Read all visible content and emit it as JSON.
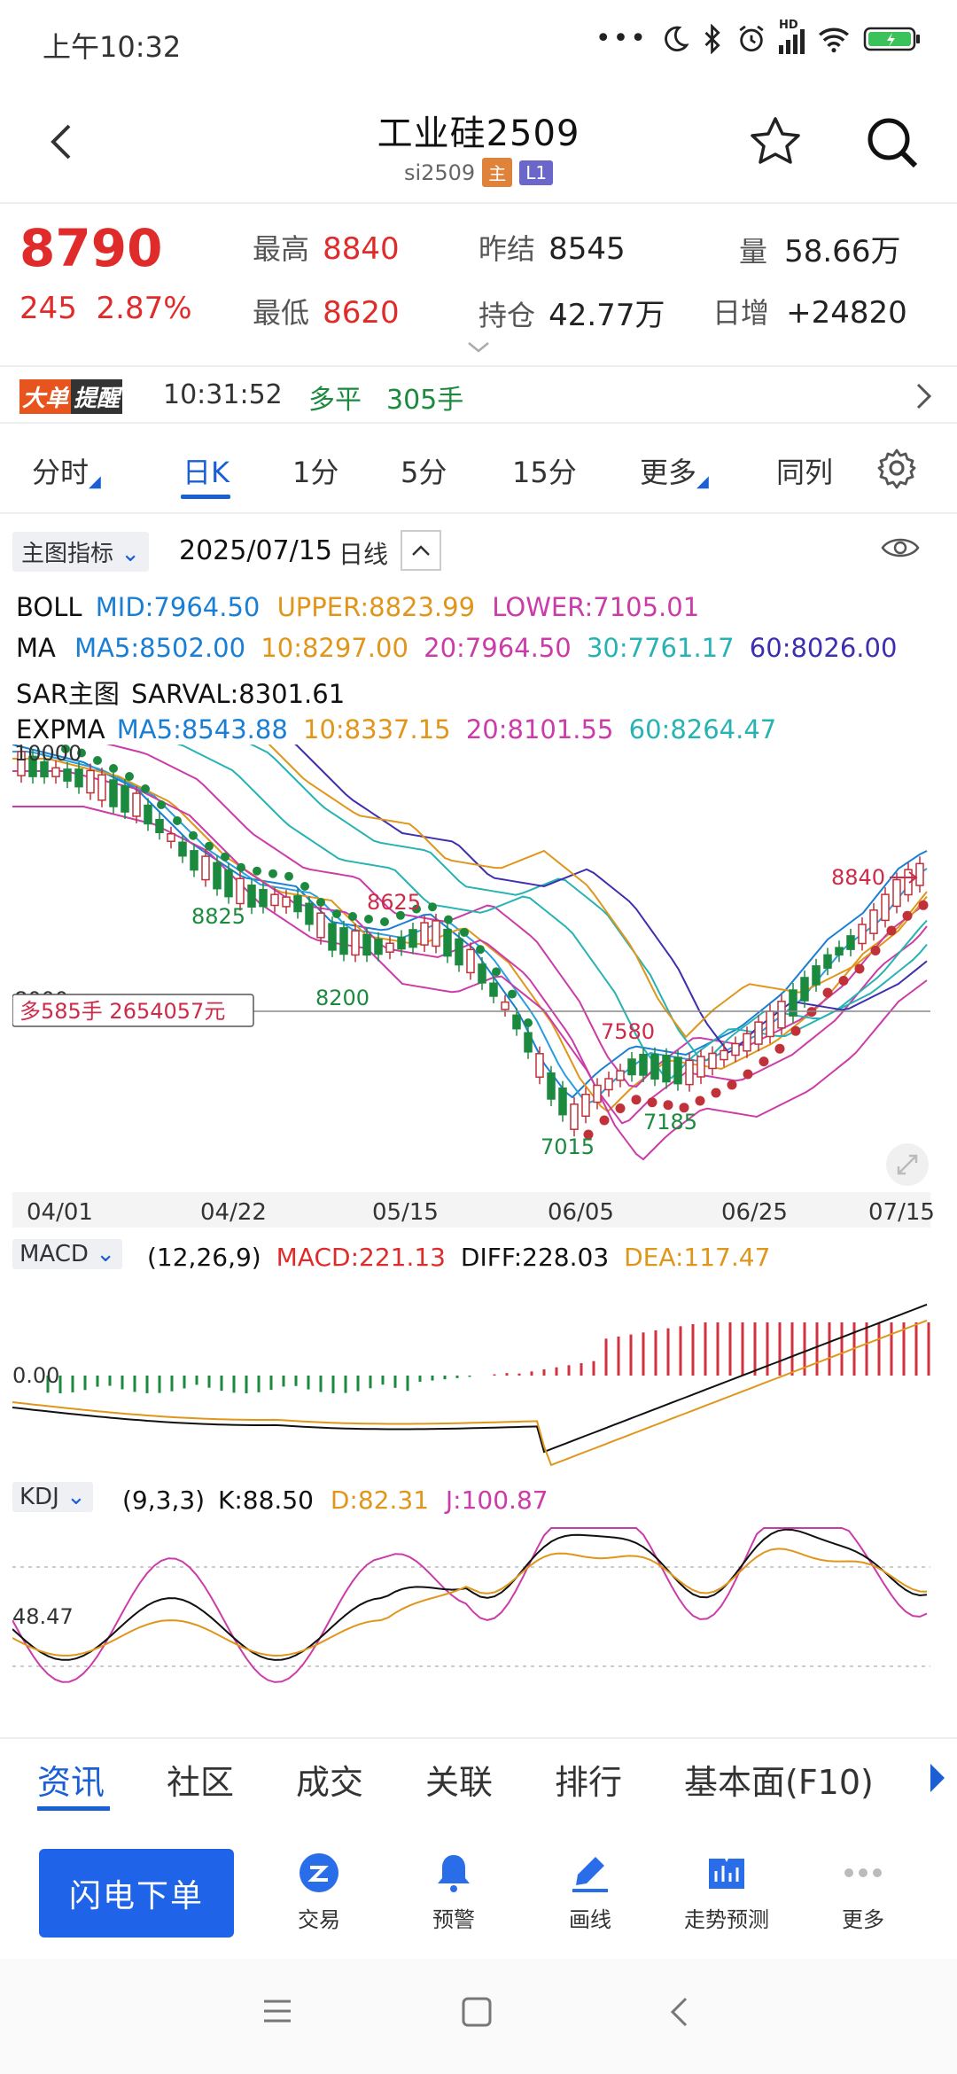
{
  "status": {
    "time": "上午10:32",
    "icons": [
      "dots-icon",
      "moon-icon",
      "bluetooth-icon",
      "alarm-icon",
      "signal-icon",
      "wifi-icon",
      "battery-icon"
    ],
    "hd": "HD"
  },
  "header": {
    "title": "工业硅2509",
    "code": "si2509",
    "badge_main": "主",
    "badge_l1": "L1"
  },
  "quote": {
    "price": "8790",
    "change": "245",
    "change_pct": "2.87%",
    "high_label": "最高",
    "high": "8840",
    "low_label": "最低",
    "low": "8620",
    "prev_settle_label": "昨结",
    "prev_settle": "8545",
    "oi_label": "持仓",
    "oi": "42.77万",
    "vol_label": "量",
    "vol": "58.66万",
    "daily_inc_label": "日增",
    "daily_inc": "+24820"
  },
  "alert": {
    "logo1": "大单",
    "logo2": "提醒",
    "time": "10:31:52",
    "type": "多平",
    "size": "305手"
  },
  "tabs": {
    "t1": "分时",
    "t2": "日K",
    "t3": "1分",
    "t4": "5分",
    "t5": "15分",
    "t6": "更多",
    "t7": "同列"
  },
  "chart_bar": {
    "indicator": "主图指标",
    "date": "2025/07/15",
    "period": "日线"
  },
  "boll": {
    "name": "BOLL",
    "mid": "MID:7964.50",
    "upper": "UPPER:8823.99",
    "lower": "LOWER:7105.01"
  },
  "ma": {
    "name": "MA",
    "ma5": "MA5:8502.00",
    "ma10": "10:8297.00",
    "ma20": "20:7964.50",
    "ma30": "30:7761.17",
    "ma60": "60:8026.00"
  },
  "sar": {
    "name": "SAR主图",
    "val": "SARVAL:8301.61"
  },
  "expma": {
    "name": "EXPMA",
    "ma5": "MA5:8543.88",
    "ma10": "10:8337.15",
    "ma20": "20:8101.55",
    "ma60": "60:8264.47"
  },
  "chart_labels": {
    "y_top": "10000",
    "y_mid": "8000",
    "p8825": "8825",
    "p8625": "8625",
    "p8200": "8200",
    "p7580": "7580",
    "p7015": "7015",
    "p7185": "7185",
    "p8840": "8840",
    "position_note": "多585手  2654057元"
  },
  "dates": [
    "04/01",
    "04/22",
    "05/15",
    "06/05",
    "06/25",
    "07/15"
  ],
  "macd": {
    "name": "MACD",
    "params": "(12,26,9)",
    "macd": "MACD:221.13",
    "diff": "DIFF:228.03",
    "dea": "DEA:117.47",
    "zero": "0.00"
  },
  "kdj": {
    "name": "KDJ",
    "params": "(9,3,3)",
    "k": "K:88.50",
    "d": "D:82.31",
    "j": "J:100.87",
    "level": "48.47"
  },
  "bottom_tabs": {
    "b1": "资讯",
    "b2": "社区",
    "b3": "成交",
    "b4": "关联",
    "b5": "排行",
    "b6": "基本面(F10)"
  },
  "toolbar": {
    "fast": "闪电下单",
    "trade": "交易",
    "warn": "预警",
    "draw": "画线",
    "predict": "走势预测",
    "more": "更多"
  },
  "colors": {
    "red": "#e02b2b",
    "green": "#1c8a3e",
    "blue": "#1a5fd4",
    "orange": "#e0961a",
    "magenta": "#cc3ca8",
    "teal": "#27b3b3",
    "purple": "#3d2fb0"
  }
}
